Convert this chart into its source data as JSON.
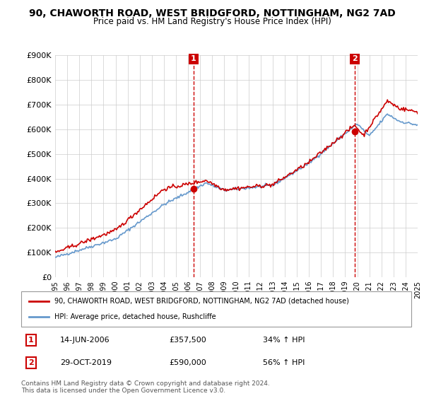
{
  "title": "90, CHAWORTH ROAD, WEST BRIDGFORD, NOTTINGHAM, NG2 7AD",
  "subtitle": "Price paid vs. HM Land Registry's House Price Index (HPI)",
  "ylim": [
    0,
    900000
  ],
  "yticks": [
    0,
    100000,
    200000,
    300000,
    400000,
    500000,
    600000,
    700000,
    800000,
    900000
  ],
  "ytick_labels": [
    "£0",
    "£100K",
    "£200K",
    "£300K",
    "£400K",
    "£500K",
    "£600K",
    "£700K",
    "£800K",
    "£900K"
  ],
  "house_color": "#cc0000",
  "hpi_color": "#6699cc",
  "vline_color": "#cc0000",
  "grid_color": "#cccccc",
  "background_color": "#ffffff",
  "legend_house_label": "90, CHAWORTH ROAD, WEST BRIDGFORD, NOTTINGHAM, NG2 7AD (detached house)",
  "legend_hpi_label": "HPI: Average price, detached house, Rushcliffe",
  "annotation1_date": "14-JUN-2006",
  "annotation1_price": "£357,500",
  "annotation1_hpi": "34% ↑ HPI",
  "annotation2_date": "29-OCT-2019",
  "annotation2_price": "£590,000",
  "annotation2_hpi": "56% ↑ HPI",
  "footer": "Contains HM Land Registry data © Crown copyright and database right 2024.\nThis data is licensed under the Open Government Licence v3.0.",
  "xstart_year": 1995,
  "xend_year": 2025
}
